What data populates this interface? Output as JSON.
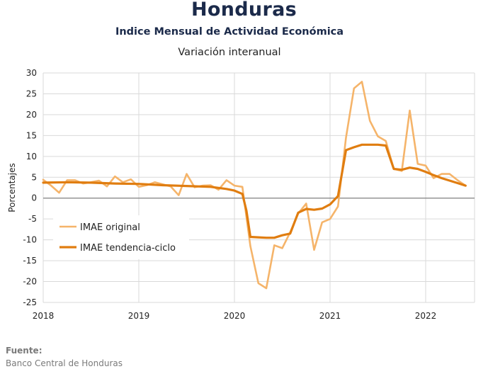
{
  "header": {
    "title": "Honduras",
    "subtitle": "Indice Mensual de  Actividad Económica",
    "subtitle2": "Variación interanual"
  },
  "source": {
    "label": "Fuente:",
    "text": "Banco Central de Honduras"
  },
  "colors": {
    "original": "#f5b46a",
    "trend": "#e07d10",
    "grid": "#d9d9d9",
    "zero": "#7f7f7f"
  },
  "chart_data": {
    "type": "line",
    "title": "",
    "xlabel": "",
    "ylabel": "Porcentajes",
    "ylim": [
      -25,
      30
    ],
    "yticks": [
      30,
      25,
      20,
      15,
      10,
      5,
      0,
      -5,
      -10,
      -15,
      -20,
      -25
    ],
    "xlim": [
      2018,
      2022.5
    ],
    "xticks": [
      2018,
      2019,
      2020,
      2021,
      2022
    ],
    "grid": true,
    "legend": "left-middle",
    "series": [
      {
        "name": "IMAE original",
        "color": "#f5b46a",
        "x": [
          2018.0,
          2018.083,
          2018.167,
          2018.25,
          2018.333,
          2018.417,
          2018.5,
          2018.583,
          2018.667,
          2018.75,
          2018.833,
          2018.917,
          2019.0,
          2019.083,
          2019.167,
          2019.25,
          2019.333,
          2019.417,
          2019.5,
          2019.583,
          2019.667,
          2019.75,
          2019.833,
          2019.917,
          2020.0,
          2020.083,
          2020.167,
          2020.25,
          2020.333,
          2020.417,
          2020.5,
          2020.583,
          2020.667,
          2020.75,
          2020.833,
          2020.917,
          2021.0,
          2021.083,
          2021.167,
          2021.25,
          2021.333,
          2021.417,
          2021.5,
          2021.583,
          2021.667,
          2021.75,
          2021.833,
          2021.917,
          2022.0,
          2022.083,
          2022.167,
          2022.25,
          2022.333,
          2022.417
        ],
        "values": [
          4.4,
          3.0,
          1.3,
          4.3,
          4.3,
          3.5,
          3.8,
          4.2,
          2.8,
          5.2,
          3.8,
          4.5,
          2.7,
          3.1,
          3.8,
          3.3,
          2.8,
          0.7,
          5.8,
          2.6,
          3.0,
          3.1,
          2.0,
          4.3,
          3.0,
          2.7,
          -11.5,
          -20.4,
          -21.6,
          -11.3,
          -12.0,
          -8.2,
          -3.7,
          -1.3,
          -12.4,
          -5.8,
          -5.0,
          -2.0,
          14.5,
          26.3,
          27.9,
          18.5,
          14.8,
          13.7,
          7.0,
          6.5,
          21.0,
          8.2,
          7.8,
          4.8,
          5.8,
          5.8,
          4.3,
          3.0
        ]
      },
      {
        "name": "IMAE tendencia-ciclo",
        "color": "#e07d10",
        "x": [
          2018.0,
          2018.25,
          2018.5,
          2018.75,
          2019.0,
          2019.25,
          2019.5,
          2019.75,
          2019.917,
          2020.0,
          2020.083,
          2020.125,
          2020.167,
          2020.25,
          2020.333,
          2020.417,
          2020.5,
          2020.583,
          2020.667,
          2020.75,
          2020.833,
          2020.917,
          2021.0,
          2021.083,
          2021.167,
          2021.25,
          2021.333,
          2021.417,
          2021.5,
          2021.583,
          2021.667,
          2021.75,
          2021.833,
          2021.917,
          2022.0,
          2022.083,
          2022.167,
          2022.25,
          2022.333,
          2022.417
        ],
        "values": [
          3.7,
          3.8,
          3.7,
          3.5,
          3.4,
          3.1,
          2.9,
          2.7,
          2.2,
          1.8,
          1.0,
          -3.0,
          -9.3,
          -9.4,
          -9.5,
          -9.5,
          -8.9,
          -8.5,
          -3.5,
          -2.6,
          -2.8,
          -2.5,
          -1.5,
          0.5,
          11.5,
          12.2,
          12.8,
          12.8,
          12.8,
          12.6,
          7.0,
          6.8,
          7.3,
          7.0,
          6.3,
          5.5,
          4.8,
          4.2,
          3.6,
          3.0
        ]
      }
    ]
  }
}
